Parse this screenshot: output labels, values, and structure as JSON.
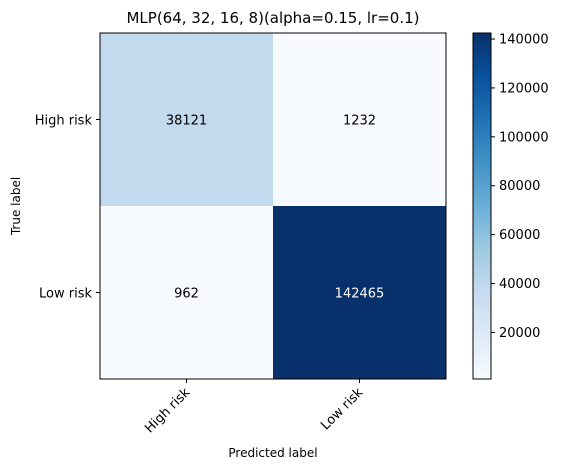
{
  "chart_data": {
    "type": "heatmap",
    "title": "MLP(64, 32, 16, 8)(alpha=0.15, lr=0.1)",
    "xlabel": "Predicted label",
    "ylabel": "True label",
    "x_categories": [
      "High risk",
      "Low risk"
    ],
    "y_categories": [
      "High risk",
      "Low risk"
    ],
    "values": [
      [
        38121,
        1232
      ],
      [
        962,
        142465
      ]
    ],
    "colormap": "Blues",
    "colorbar": {
      "min": 962,
      "max": 142465,
      "ticks": [
        20000,
        40000,
        60000,
        80000,
        100000,
        120000,
        140000
      ]
    },
    "text_colors": {
      "light": "#ffffff",
      "dark": "#000000"
    },
    "grid": false
  }
}
